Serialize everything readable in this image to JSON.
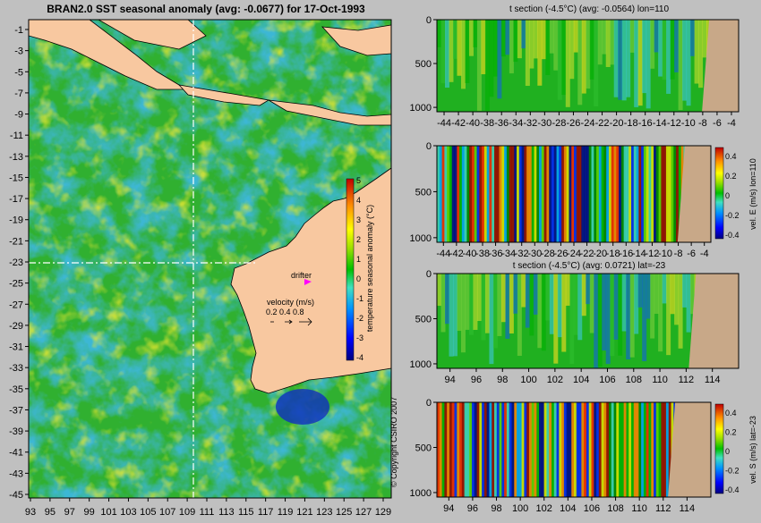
{
  "main_title": "BRAN2.0 SST seasonal anomaly  (avg: -0.0677) for 17-Oct-1993",
  "copyright": "© Copyright CSIRO 2007",
  "colors": {
    "background": "#c0c0c0",
    "land": "#f8c8a0",
    "section_land": "#c8a888",
    "drifter_marker": "#ff00ff",
    "colormap": [
      "#000080",
      "#0000ff",
      "#0080ff",
      "#00d0ff",
      "#60e0a0",
      "#00c000",
      "#a0e000",
      "#ffff00",
      "#ffa000",
      "#ff2000",
      "#800000"
    ]
  },
  "map_panel": {
    "y_ticks": [
      "-1",
      "-3",
      "-5",
      "-7",
      "-9",
      "-11",
      "-13",
      "-15",
      "-17",
      "-19",
      "-21",
      "-23",
      "-25",
      "-27",
      "-29",
      "-31",
      "-33",
      "-35",
      "-37",
      "-39",
      "-41",
      "-43",
      "-45"
    ],
    "x_ticks": [
      "93",
      "95",
      "97",
      "99",
      "101",
      "103",
      "105",
      "107",
      "109",
      "111",
      "113",
      "115",
      "117",
      "119",
      "121",
      "123",
      "125",
      "127",
      "129"
    ],
    "drifter_label": "drifter",
    "velocity_label": "velocity (m/s)",
    "velocity_scale": "0.2 0.4 0.8",
    "colorbar_label": "temperature seasonal anomaly (°C)",
    "colorbar_ticks": [
      "5",
      "4",
      "3",
      "2",
      "1",
      "0",
      "-1",
      "-2",
      "-3",
      "-4"
    ],
    "crosshair": {
      "lon": 110,
      "lat": -23
    }
  },
  "sections": [
    {
      "title": "t section (-4.5°C) (avg: -0.0564) lon=110",
      "y_ticks": [
        "0",
        "500",
        "1000"
      ],
      "x_ticks": [
        "-44",
        "-42",
        "-40",
        "-38",
        "-36",
        "-34",
        "-32",
        "-30",
        "-28",
        "-26",
        "-24",
        "-22",
        "-20",
        "-18",
        "-16",
        "-14",
        "-12",
        "-10",
        "-8",
        "-6",
        "-4"
      ],
      "colorbar": null
    },
    {
      "title": "",
      "y_ticks": [
        "0",
        "500",
        "1000"
      ],
      "x_ticks": [
        "-44",
        "-42",
        "-40",
        "-38",
        "-36",
        "-34",
        "-32",
        "-30",
        "-28",
        "-26",
        "-24",
        "-22",
        "-20",
        "-18",
        "-16",
        "-14",
        "-12",
        "-10",
        "-8",
        "-6",
        "-4"
      ],
      "colorbar": {
        "label": "vel. E (m/s) lon=110",
        "ticks": [
          "0.4",
          "0.2",
          "0",
          "-0.2",
          "-0.4"
        ]
      }
    },
    {
      "title": "t section (-4.5°C) (avg: 0.0721) lat=-23",
      "y_ticks": [
        "0",
        "500",
        "1000"
      ],
      "x_ticks": [
        "94",
        "96",
        "98",
        "100",
        "102",
        "104",
        "106",
        "108",
        "110",
        "112",
        "114"
      ],
      "colorbar": null
    },
    {
      "title": "",
      "y_ticks": [
        "0",
        "500",
        "1000"
      ],
      "x_ticks": [
        "94",
        "96",
        "98",
        "100",
        "102",
        "104",
        "106",
        "108",
        "110",
        "112",
        "114"
      ],
      "colorbar": {
        "label": "vel. S (m/s) lat=-23",
        "ticks": [
          "0.4",
          "0.2",
          "0",
          "-0.2",
          "-0.4"
        ]
      }
    }
  ],
  "chart_data": [
    {
      "type": "heatmap",
      "title": "BRAN2.0 SST seasonal anomaly  (avg: -0.0677) for 17-Oct-1993",
      "xlabel": "",
      "ylabel": "",
      "xlim": [
        93,
        130
      ],
      "ylim": [
        -45,
        0
      ],
      "colorbar_label": "temperature seasonal anomaly (°C)",
      "colorbar_range": [
        -4,
        5
      ],
      "annotations": [
        "drifter",
        "velocity (m/s)",
        "0.2 0.4 0.8"
      ],
      "crosshair": {
        "lon": 110,
        "lat": -23
      }
    },
    {
      "type": "heatmap",
      "title": "t section (-4.5°C) (avg: -0.0564) lon=110",
      "xlim": [
        -45,
        -3
      ],
      "ylim": [
        1050,
        0
      ]
    },
    {
      "type": "heatmap",
      "title": "",
      "xlim": [
        -45,
        -3
      ],
      "ylim": [
        1050,
        0
      ],
      "colorbar_label": "vel. E (m/s) lon=110",
      "colorbar_range": [
        -0.45,
        0.45
      ]
    },
    {
      "type": "heatmap",
      "title": "t section (-4.5°C) (avg: 0.0721) lat=-23",
      "xlim": [
        93,
        116
      ],
      "ylim": [
        1050,
        0
      ]
    },
    {
      "type": "heatmap",
      "title": "",
      "xlim": [
        93,
        116
      ],
      "ylim": [
        1050,
        0
      ],
      "colorbar_label": "vel. S (m/s) lat=-23",
      "colorbar_range": [
        -0.45,
        0.45
      ]
    }
  ]
}
